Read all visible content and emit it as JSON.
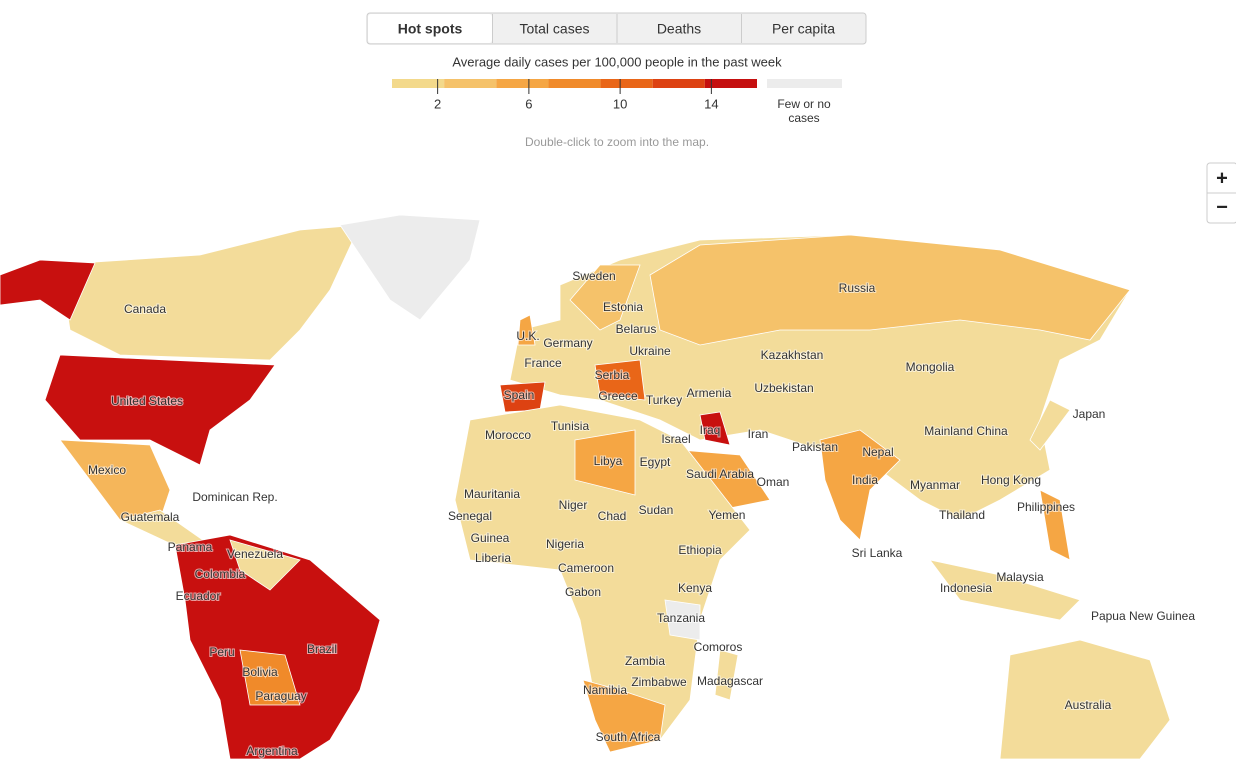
{
  "tabs": [
    "Hot spots",
    "Total cases",
    "Deaths",
    "Per capita"
  ],
  "legend": {
    "title": "Average daily cases per 100,000 people in the past week",
    "range": [
      0,
      16
    ],
    "ticks": [
      2,
      6,
      10,
      14
    ],
    "colors": [
      "#f3d98b",
      "#f5c26a",
      "#f5a644",
      "#f08a2a",
      "#e96618",
      "#dd4212",
      "#c50f0f"
    ],
    "none_color": "#ececec",
    "none_label": "Few or no cases"
  },
  "hint": "Double-click to zoom into the map.",
  "zoom": {
    "in": "+",
    "out": "−"
  },
  "labels": [
    "Canada",
    "United States",
    "Mexico",
    "Dominican Rep.",
    "Guatemala",
    "Panama",
    "Venezuela",
    "Colombia",
    "Ecuador",
    "Peru",
    "Brazil",
    "Bolivia",
    "Paraguay",
    "Argentina",
    "Sweden",
    "Estonia",
    "Belarus",
    "U.K.",
    "Germany",
    "Ukraine",
    "France",
    "Serbia",
    "Spain",
    "Greece",
    "Turkey",
    "Armenia",
    "Russia",
    "Kazakhstan",
    "Uzbekistan",
    "Mongolia",
    "Japan",
    "Mainland China",
    "Iran",
    "Iraq",
    "Israel",
    "Pakistan",
    "Nepal",
    "India",
    "Tunisia",
    "Morocco",
    "Libya",
    "Egypt",
    "Saudi Arabia",
    "Oman",
    "Yemen",
    "Myanmar",
    "Hong Kong",
    "Thailand",
    "Philippines",
    "Sri Lanka",
    "Malaysia",
    "Indonesia",
    "Papua New Guinea",
    "Australia",
    "Mauritania",
    "Senegal",
    "Niger",
    "Chad",
    "Sudan",
    "Guinea",
    "Liberia",
    "Nigeria",
    "Cameroon",
    "Ethiopia",
    "Gabon",
    "Kenya",
    "Tanzania",
    "Comoros",
    "Zambia",
    "Zimbabwe",
    "Madagascar",
    "Namibia",
    "South Africa"
  ]
}
